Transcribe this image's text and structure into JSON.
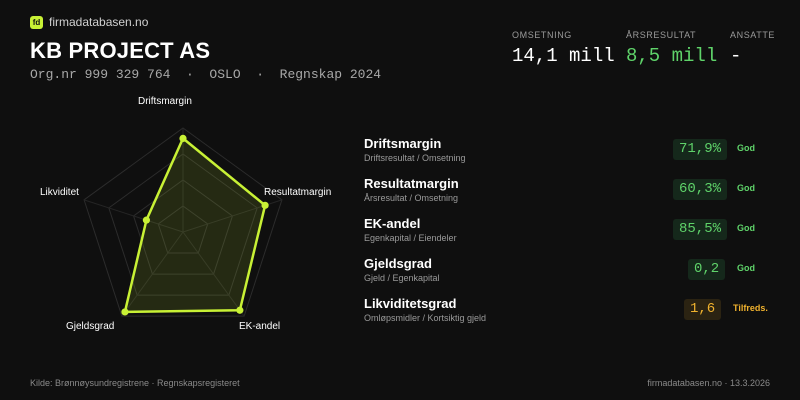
{
  "brand": {
    "icon": "fd",
    "name": "firmadatabasen.no"
  },
  "company": {
    "name": "KB PROJECT AS",
    "meta": "Org.nr 999 329 764  ·  OSLO  ·  Regnskap 2024"
  },
  "stats": [
    {
      "label": "OMSETNING",
      "value": "14,1 mill",
      "color": "#ffffff"
    },
    {
      "label": "ÅRSRESULTAT",
      "value": "8,5 mill",
      "color": "#5fd36a"
    },
    {
      "label": "ANSATTE",
      "value": "-",
      "color": "#ffffff"
    }
  ],
  "radar": {
    "axes": [
      "Driftsmargin",
      "Resultatmargin",
      "EK-andel",
      "Gjeldsgrad",
      "Likviditet"
    ],
    "levels": [
      0.9,
      0.83,
      0.93,
      0.95,
      0.37
    ],
    "fill_color": "#c8f135"
  },
  "metrics": [
    {
      "title": "Driftsmargin",
      "subtitle": "Driftsresultat / Omsetning",
      "value": "71,9%",
      "rating": "God",
      "status": "good"
    },
    {
      "title": "Resultatmargin",
      "subtitle": "Årsresultat / Omsetning",
      "value": "60,3%",
      "rating": "God",
      "status": "good"
    },
    {
      "title": "EK-andel",
      "subtitle": "Egenkapital / Eiendeler",
      "value": "85,5%",
      "rating": "God",
      "status": "good"
    },
    {
      "title": "Gjeldsgrad",
      "subtitle": "Gjeld / Egenkapital",
      "value": "0,2",
      "rating": "God",
      "status": "good"
    },
    {
      "title": "Likviditetsgrad",
      "subtitle": "Omløpsmidler / Kortsiktig gjeld",
      "value": "1,6",
      "rating": "Tilfreds.",
      "status": "ok"
    }
  ],
  "footer": {
    "source": "Kilde: Brønnøysundregistrene · Regnskapsregisteret",
    "site_date": "firmadatabasen.no · 13.3.2026"
  }
}
